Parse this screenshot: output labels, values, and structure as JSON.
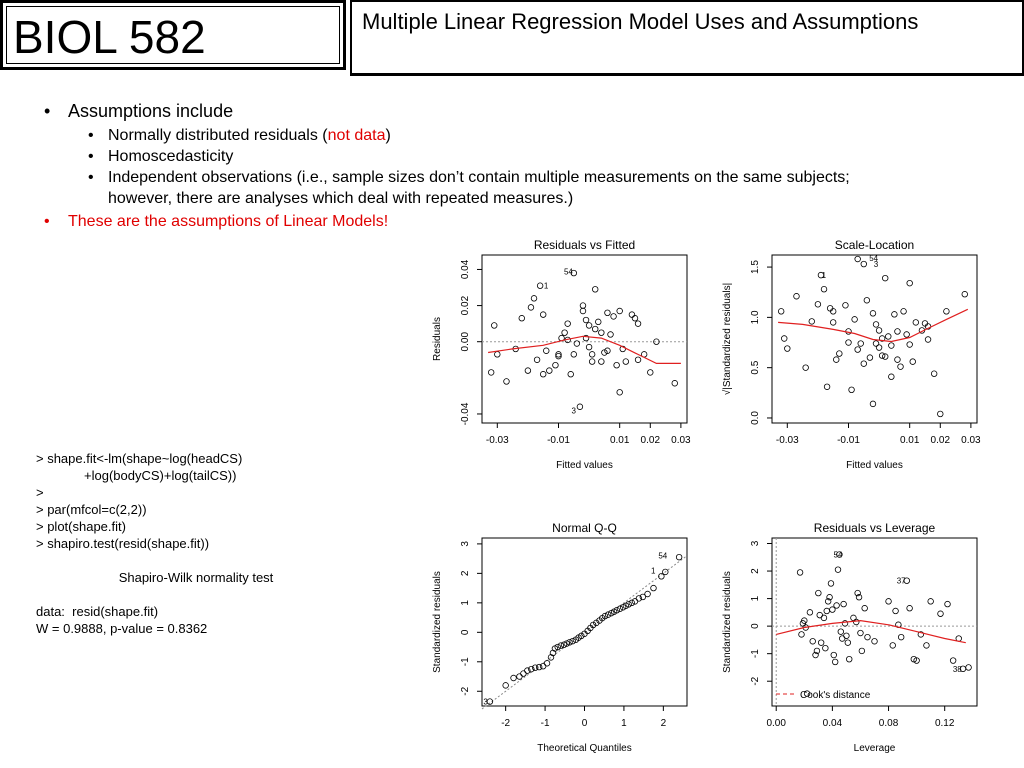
{
  "header": {
    "course": "BIOL 582",
    "title": "Multiple Linear Regression Model Uses and Assumptions"
  },
  "bullets": {
    "assumptions_heading": "Assumptions include",
    "normal_prefix": "Normally distributed residuals (",
    "normal_red": "not data",
    "normal_suffix": ")",
    "homo": "Homoscedasticity",
    "indep_line1": "Independent observations (i.e., sample sizes don’t contain multiple measurements on the same subjects;",
    "indep_line2": "however, there are analyses which deal with repeated measures.)",
    "linear_models": "These are the assumptions of Linear Models!"
  },
  "code": {
    "line1": "> shape.fit<-lm(shape~log(headCS)",
    "line2": "+log(bodyCS)+log(tailCS))",
    "line3": ">",
    "line4": "> par(mfcol=c(2,2))",
    "line5": "> plot(shape.fit)",
    "line6": "> shapiro.test(resid(shape.fit))",
    "test_name": "Shapiro-Wilk normality test",
    "data_line": "data:  resid(shape.fit)",
    "result_line": "W = 0.9888, p-value = 0.8362"
  },
  "colors": {
    "accent_red": "#e00000",
    "smooth_line": "#e02020"
  },
  "chart_data": [
    {
      "type": "scatter",
      "title": "Residuals vs Fitted",
      "xlabel": "Fitted values",
      "ylabel": "Residuals",
      "xticks": [
        "-0.03",
        "-0.01",
        "0.01",
        "0.02",
        "0.03"
      ],
      "yticks": [
        "-0.04",
        "0.00",
        "0.02",
        "0.04"
      ],
      "xlim": [
        -0.035,
        0.032
      ],
      "ylim": [
        -0.045,
        0.048
      ],
      "labels": [
        {
          "text": "54",
          "x": -0.004,
          "y": 0.039
        },
        {
          "text": "1",
          "x": -0.012,
          "y": 0.031
        },
        {
          "text": "3",
          "x": -0.003,
          "y": -0.038
        }
      ],
      "points": [
        [
          -0.032,
          -0.017
        ],
        [
          -0.031,
          0.009
        ],
        [
          -0.03,
          -0.007
        ],
        [
          -0.027,
          -0.022
        ],
        [
          -0.024,
          -0.004
        ],
        [
          -0.022,
          0.013
        ],
        [
          -0.02,
          -0.016
        ],
        [
          -0.019,
          0.019
        ],
        [
          -0.018,
          0.024
        ],
        [
          -0.017,
          -0.01
        ],
        [
          -0.016,
          0.031
        ],
        [
          -0.015,
          0.015
        ],
        [
          -0.015,
          -0.018
        ],
        [
          -0.014,
          -0.005
        ],
        [
          -0.013,
          -0.016
        ],
        [
          -0.011,
          -0.013
        ],
        [
          -0.01,
          -0.007
        ],
        [
          -0.01,
          -0.008
        ],
        [
          -0.009,
          0.002
        ],
        [
          -0.008,
          0.005
        ],
        [
          -0.007,
          0.001
        ],
        [
          -0.007,
          0.01
        ],
        [
          -0.006,
          -0.018
        ],
        [
          -0.005,
          0.038
        ],
        [
          -0.005,
          -0.007
        ],
        [
          -0.004,
          -0.001
        ],
        [
          -0.003,
          -0.036
        ],
        [
          -0.002,
          0.017
        ],
        [
          -0.002,
          0.02
        ],
        [
          -0.001,
          0.002
        ],
        [
          -0.001,
          0.012
        ],
        [
          0.0,
          0.009
        ],
        [
          0.0,
          -0.003
        ],
        [
          0.001,
          -0.011
        ],
        [
          0.001,
          -0.007
        ],
        [
          0.002,
          0.029
        ],
        [
          0.002,
          0.007
        ],
        [
          0.003,
          0.011
        ],
        [
          0.004,
          0.005
        ],
        [
          0.004,
          -0.011
        ],
        [
          0.005,
          -0.006
        ],
        [
          0.006,
          -0.005
        ],
        [
          0.006,
          0.016
        ],
        [
          0.007,
          0.004
        ],
        [
          0.008,
          0.014
        ],
        [
          0.009,
          -0.013
        ],
        [
          0.01,
          -0.028
        ],
        [
          0.01,
          0.017
        ],
        [
          0.011,
          -0.004
        ],
        [
          0.012,
          -0.011
        ],
        [
          0.014,
          0.015
        ],
        [
          0.015,
          0.013
        ],
        [
          0.016,
          0.01
        ],
        [
          0.016,
          -0.01
        ],
        [
          0.018,
          -0.007
        ],
        [
          0.02,
          -0.017
        ],
        [
          0.022,
          0.0
        ],
        [
          0.028,
          -0.023
        ]
      ],
      "smooth": [
        [
          -0.033,
          -0.006
        ],
        [
          -0.025,
          -0.004
        ],
        [
          -0.015,
          -0.002
        ],
        [
          -0.008,
          0.001
        ],
        [
          -0.002,
          0.003
        ],
        [
          0.004,
          0.002
        ],
        [
          0.01,
          -0.002
        ],
        [
          0.016,
          -0.007
        ],
        [
          0.022,
          -0.012
        ],
        [
          0.03,
          -0.012
        ]
      ]
    },
    {
      "type": "scatter",
      "title": "Scale-Location",
      "xlabel": "Fitted values",
      "ylabel": "√|Standardized residuals|",
      "xticks": [
        "-0.03",
        "-0.01",
        "0.01",
        "0.02",
        "0.03"
      ],
      "yticks": [
        "0.0",
        "0.5",
        "1.0",
        "1.5"
      ],
      "xlim": [
        -0.035,
        0.032
      ],
      "ylim": [
        -0.05,
        1.62
      ],
      "labels": [
        {
          "text": "54",
          "x": 0.001,
          "y": 1.59
        },
        {
          "text": "3",
          "x": 0.001,
          "y": 1.53
        },
        {
          "text": "1",
          "x": -0.016,
          "y": 1.42
        }
      ],
      "points": [
        [
          -0.032,
          1.06
        ],
        [
          -0.031,
          0.79
        ],
        [
          -0.03,
          0.69
        ],
        [
          -0.027,
          1.21
        ],
        [
          -0.024,
          0.5
        ],
        [
          -0.022,
          0.96
        ],
        [
          -0.02,
          1.13
        ],
        [
          -0.019,
          1.42
        ],
        [
          -0.018,
          1.28
        ],
        [
          -0.017,
          0.31
        ],
        [
          -0.016,
          1.09
        ],
        [
          -0.015,
          0.95
        ],
        [
          -0.015,
          1.06
        ],
        [
          -0.014,
          0.58
        ],
        [
          -0.013,
          0.64
        ],
        [
          -0.011,
          1.12
        ],
        [
          -0.01,
          0.75
        ],
        [
          -0.01,
          0.86
        ],
        [
          -0.009,
          0.28
        ],
        [
          -0.008,
          0.98
        ],
        [
          -0.007,
          1.58
        ],
        [
          -0.007,
          0.68
        ],
        [
          -0.006,
          0.74
        ],
        [
          -0.005,
          1.53
        ],
        [
          -0.005,
          0.54
        ],
        [
          -0.004,
          1.17
        ],
        [
          -0.003,
          0.6
        ],
        [
          -0.002,
          0.14
        ],
        [
          -0.002,
          1.04
        ],
        [
          -0.001,
          0.93
        ],
        [
          -0.001,
          0.74
        ],
        [
          0.0,
          0.7
        ],
        [
          0.0,
          0.87
        ],
        [
          0.001,
          0.79
        ],
        [
          0.001,
          0.62
        ],
        [
          0.002,
          1.39
        ],
        [
          0.002,
          0.61
        ],
        [
          0.003,
          0.81
        ],
        [
          0.004,
          0.41
        ],
        [
          0.004,
          0.72
        ],
        [
          0.005,
          1.03
        ],
        [
          0.006,
          0.58
        ],
        [
          0.006,
          0.86
        ],
        [
          0.007,
          0.51
        ],
        [
          0.008,
          1.06
        ],
        [
          0.009,
          0.83
        ],
        [
          0.01,
          1.34
        ],
        [
          0.01,
          0.73
        ],
        [
          0.011,
          0.56
        ],
        [
          0.012,
          0.95
        ],
        [
          0.014,
          0.87
        ],
        [
          0.015,
          0.94
        ],
        [
          0.016,
          0.78
        ],
        [
          0.016,
          0.91
        ],
        [
          0.018,
          0.44
        ],
        [
          0.02,
          0.04
        ],
        [
          0.022,
          1.06
        ],
        [
          0.028,
          1.23
        ]
      ],
      "smooth": [
        [
          -0.033,
          0.95
        ],
        [
          -0.025,
          0.93
        ],
        [
          -0.015,
          0.88
        ],
        [
          -0.008,
          0.84
        ],
        [
          -0.002,
          0.78
        ],
        [
          0.004,
          0.76
        ],
        [
          0.01,
          0.8
        ],
        [
          0.016,
          0.89
        ],
        [
          0.022,
          0.98
        ],
        [
          0.029,
          1.08
        ]
      ]
    },
    {
      "type": "scatter",
      "title": "Normal Q-Q",
      "xlabel": "Theoretical Quantiles",
      "ylabel": "Standardized residuals",
      "xticks": [
        "-2",
        "-1",
        "0",
        "1",
        "2"
      ],
      "yticks": [
        "-2",
        "-1",
        "0",
        "1",
        "2",
        "3"
      ],
      "xlim": [
        -2.6,
        2.6
      ],
      "ylim": [
        -2.5,
        3.2
      ],
      "labels": [
        {
          "text": "54",
          "x": 2.2,
          "y": 2.6
        },
        {
          "text": "1",
          "x": 1.9,
          "y": 2.1
        },
        {
          "text": "3",
          "x": -2.35,
          "y": -2.35
        }
      ],
      "points": [
        [
          -2.4,
          -2.35
        ],
        [
          -2.0,
          -1.8
        ],
        [
          -1.8,
          -1.55
        ],
        [
          -1.65,
          -1.5
        ],
        [
          -1.55,
          -1.4
        ],
        [
          -1.45,
          -1.3
        ],
        [
          -1.35,
          -1.25
        ],
        [
          -1.25,
          -1.2
        ],
        [
          -1.15,
          -1.18
        ],
        [
          -1.05,
          -1.15
        ],
        [
          -0.95,
          -1.05
        ],
        [
          -0.85,
          -0.85
        ],
        [
          -0.8,
          -0.7
        ],
        [
          -0.75,
          -0.55
        ],
        [
          -0.68,
          -0.5
        ],
        [
          -0.6,
          -0.45
        ],
        [
          -0.52,
          -0.42
        ],
        [
          -0.45,
          -0.38
        ],
        [
          -0.38,
          -0.34
        ],
        [
          -0.3,
          -0.3
        ],
        [
          -0.22,
          -0.25
        ],
        [
          -0.15,
          -0.18
        ],
        [
          -0.08,
          -0.12
        ],
        [
          0.0,
          -0.05
        ],
        [
          0.08,
          0.05
        ],
        [
          0.15,
          0.15
        ],
        [
          0.22,
          0.25
        ],
        [
          0.3,
          0.32
        ],
        [
          0.38,
          0.4
        ],
        [
          0.45,
          0.48
        ],
        [
          0.52,
          0.55
        ],
        [
          0.6,
          0.6
        ],
        [
          0.68,
          0.65
        ],
        [
          0.75,
          0.7
        ],
        [
          0.82,
          0.75
        ],
        [
          0.9,
          0.8
        ],
        [
          0.98,
          0.85
        ],
        [
          1.05,
          0.9
        ],
        [
          1.12,
          0.95
        ],
        [
          1.2,
          1.0
        ],
        [
          1.28,
          1.05
        ],
        [
          1.38,
          1.15
        ],
        [
          1.48,
          1.2
        ],
        [
          1.6,
          1.3
        ],
        [
          1.75,
          1.5
        ],
        [
          1.95,
          1.9
        ],
        [
          2.05,
          2.05
        ],
        [
          2.4,
          2.55
        ]
      ],
      "refline": [
        [
          -2.6,
          -2.6
        ],
        [
          2.6,
          2.6
        ]
      ]
    },
    {
      "type": "scatter",
      "title": "Residuals vs Leverage",
      "xlabel": "Leverage",
      "ylabel": "Standardized residuals",
      "xticks": [
        "0.00",
        "0.04",
        "0.08",
        "0.12"
      ],
      "yticks": [
        "-2",
        "-1",
        "0",
        "1",
        "2",
        "3"
      ],
      "xlim": [
        -0.003,
        0.143
      ],
      "ylim": [
        -2.9,
        3.2
      ],
      "legend": "Cook's distance",
      "legend_position": "bottom-left",
      "labels": [
        {
          "text": "54",
          "x": 0.05,
          "y": 2.6
        },
        {
          "text": "37",
          "x": 0.095,
          "y": 1.65
        },
        {
          "text": "38",
          "x": 0.135,
          "y": -1.55
        }
      ],
      "points": [
        [
          0.017,
          1.95
        ],
        [
          0.018,
          -0.3
        ],
        [
          0.019,
          0.1
        ],
        [
          0.02,
          0.2
        ],
        [
          0.021,
          -0.05
        ],
        [
          0.022,
          -2.45
        ],
        [
          0.024,
          0.5
        ],
        [
          0.026,
          -0.55
        ],
        [
          0.028,
          -1.05
        ],
        [
          0.029,
          -0.9
        ],
        [
          0.03,
          1.2
        ],
        [
          0.031,
          0.4
        ],
        [
          0.032,
          -0.6
        ],
        [
          0.034,
          0.3
        ],
        [
          0.035,
          -0.8
        ],
        [
          0.036,
          0.55
        ],
        [
          0.037,
          0.9
        ],
        [
          0.038,
          1.05
        ],
        [
          0.039,
          1.55
        ],
        [
          0.04,
          0.6
        ],
        [
          0.041,
          -1.05
        ],
        [
          0.042,
          -1.3
        ],
        [
          0.043,
          0.75
        ],
        [
          0.044,
          2.05
        ],
        [
          0.045,
          2.6
        ],
        [
          0.046,
          -0.2
        ],
        [
          0.047,
          -0.45
        ],
        [
          0.048,
          0.8
        ],
        [
          0.049,
          0.1
        ],
        [
          0.05,
          -0.35
        ],
        [
          0.051,
          -0.6
        ],
        [
          0.052,
          -1.2
        ],
        [
          0.055,
          0.3
        ],
        [
          0.057,
          0.15
        ],
        [
          0.058,
          1.2
        ],
        [
          0.059,
          1.05
        ],
        [
          0.06,
          -0.25
        ],
        [
          0.061,
          -0.9
        ],
        [
          0.063,
          0.65
        ],
        [
          0.065,
          -0.4
        ],
        [
          0.07,
          -0.55
        ],
        [
          0.08,
          0.9
        ],
        [
          0.083,
          -0.7
        ],
        [
          0.085,
          0.55
        ],
        [
          0.087,
          0.05
        ],
        [
          0.089,
          -0.4
        ],
        [
          0.093,
          1.65
        ],
        [
          0.095,
          0.65
        ],
        [
          0.098,
          -1.2
        ],
        [
          0.1,
          -1.25
        ],
        [
          0.103,
          -0.3
        ],
        [
          0.107,
          -0.7
        ],
        [
          0.11,
          0.9
        ],
        [
          0.117,
          0.45
        ],
        [
          0.122,
          0.8
        ],
        [
          0.126,
          -1.25
        ],
        [
          0.13,
          -0.45
        ],
        [
          0.133,
          -1.55
        ],
        [
          0.137,
          -1.5
        ]
      ],
      "smooth": [
        [
          0.0,
          -0.3
        ],
        [
          0.02,
          -0.05
        ],
        [
          0.04,
          0.1
        ],
        [
          0.06,
          0.2
        ],
        [
          0.08,
          0.05
        ],
        [
          0.1,
          -0.2
        ],
        [
          0.12,
          -0.45
        ],
        [
          0.135,
          -0.6
        ]
      ]
    }
  ]
}
